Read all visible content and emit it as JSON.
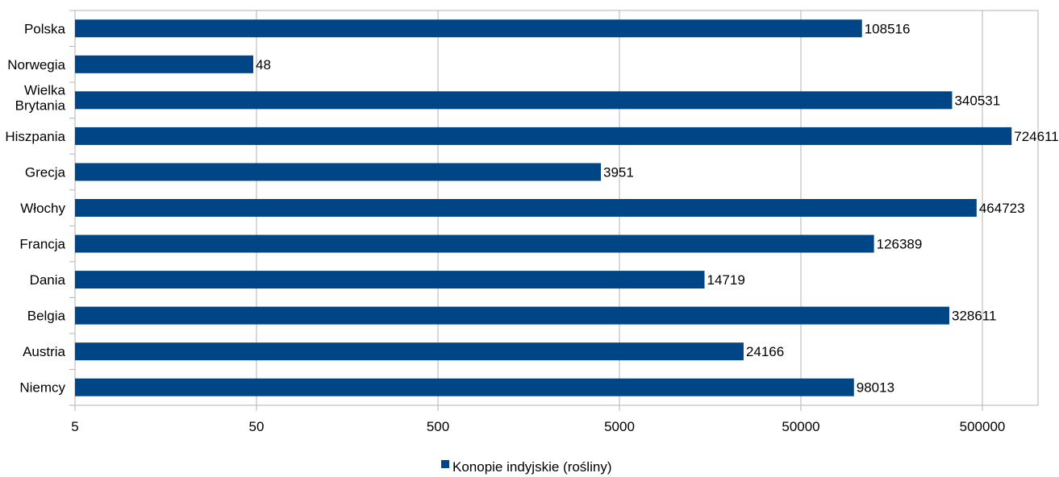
{
  "chart_data": {
    "type": "bar",
    "orientation": "horizontal",
    "categories": [
      "Polska",
      "Norwegia",
      "Wielka Brytania",
      "Hiszpania",
      "Grecja",
      "Włochy",
      "Francja",
      "Dania",
      "Belgia",
      "Austria",
      "Niemcy"
    ],
    "series": [
      {
        "name": "Konopie indyjskie (rośliny)",
        "values": [
          108516,
          48,
          340531,
          724611,
          3951,
          464723,
          126389,
          14719,
          328611,
          24166,
          98013
        ],
        "color": "#004586"
      }
    ],
    "x_axis": {
      "scale": "log",
      "ticks": [
        "5",
        "50",
        "500",
        "5000",
        "50000",
        "500000"
      ],
      "range": [
        5,
        1500000
      ]
    },
    "grid": true,
    "legend_position": "bottom"
  }
}
